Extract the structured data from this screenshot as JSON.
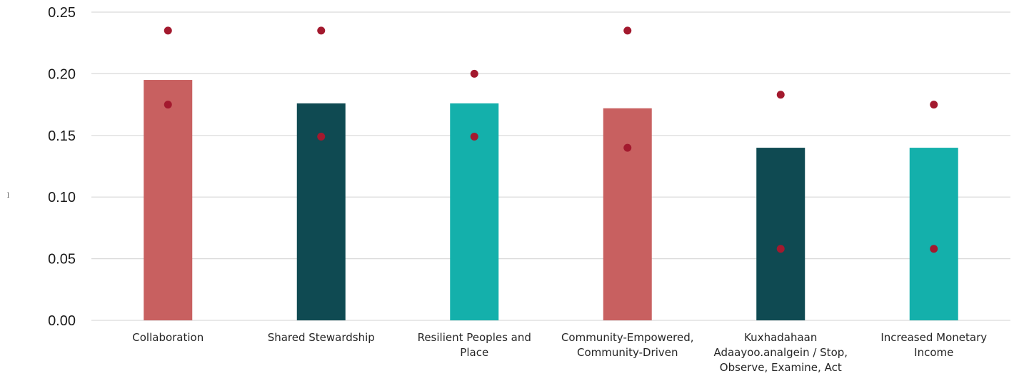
{
  "chart_data": {
    "type": "bar",
    "title": "",
    "xlabel": "",
    "ylabel": "",
    "ylim": [
      0,
      0.25
    ],
    "yticks": [
      "0.00",
      "0.05",
      "0.10",
      "0.15",
      "0.20",
      "0.25"
    ],
    "grid": true,
    "categories": [
      [
        "Collaboration"
      ],
      [
        "Shared Stewardship"
      ],
      [
        "Resilient Peoples and",
        "Place"
      ],
      [
        "Community-Empowered,",
        "Community-Driven"
      ],
      [
        "Kuxhadahaan",
        "Adaayoo.analgein / Stop,",
        "Observe, Examine, Act"
      ],
      [
        "Increased Monetary",
        "Income"
      ]
    ],
    "series": [
      {
        "type": "bar",
        "values": [
          0.195,
          0.176,
          0.176,
          0.172,
          0.14,
          0.14
        ],
        "colors": [
          "#c86060",
          "#0f4a52",
          "#14b0ab",
          "#c86060",
          "#0f4a52",
          "#14b0ab"
        ]
      },
      {
        "type": "scatter",
        "values": [
          0.235,
          0.235,
          0.2,
          0.235,
          0.183,
          0.175
        ],
        "color": "#a3192e"
      },
      {
        "type": "scatter",
        "values": [
          0.175,
          0.149,
          0.149,
          0.14,
          0.058,
          0.058
        ],
        "color": "#a3192e"
      }
    ]
  },
  "stray_mark": "l"
}
